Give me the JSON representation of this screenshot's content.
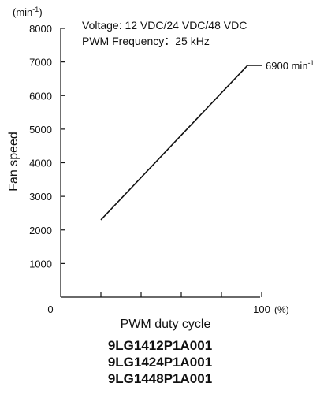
{
  "chart_data": {
    "type": "line",
    "y_unit_base": "min",
    "y_unit_exp": "-1",
    "ylabel": "Fan speed",
    "xlabel": "PWM duty cycle",
    "x_end_label": "100",
    "x_unit": "(%)",
    "origin_label": "0",
    "notes": [
      "Voltage: 12 VDC/24 VDC/48 VDC",
      "PWM Frequency：25 kHz"
    ],
    "ylim": [
      0,
      8000
    ],
    "xlim": [
      0,
      100
    ],
    "yticks": [
      1000,
      2000,
      3000,
      4000,
      5000,
      6000,
      7000,
      8000
    ],
    "ytick_labels": [
      "1000",
      "2000",
      "3000",
      "4000",
      "5000",
      "6000",
      "7000",
      "8000"
    ],
    "xticks": [
      20,
      40,
      60,
      80,
      100
    ],
    "series": [
      {
        "points": [
          [
            20,
            2300
          ],
          [
            93,
            6900
          ],
          [
            100,
            6900
          ]
        ]
      }
    ],
    "annotation": {
      "text_base": "6900 min",
      "text_exp": "-1",
      "y": 6900
    },
    "line_color": "#111111"
  },
  "models": [
    "9LG1412P1A001",
    "9LG1424P1A001",
    "9LG1448P1A001"
  ]
}
